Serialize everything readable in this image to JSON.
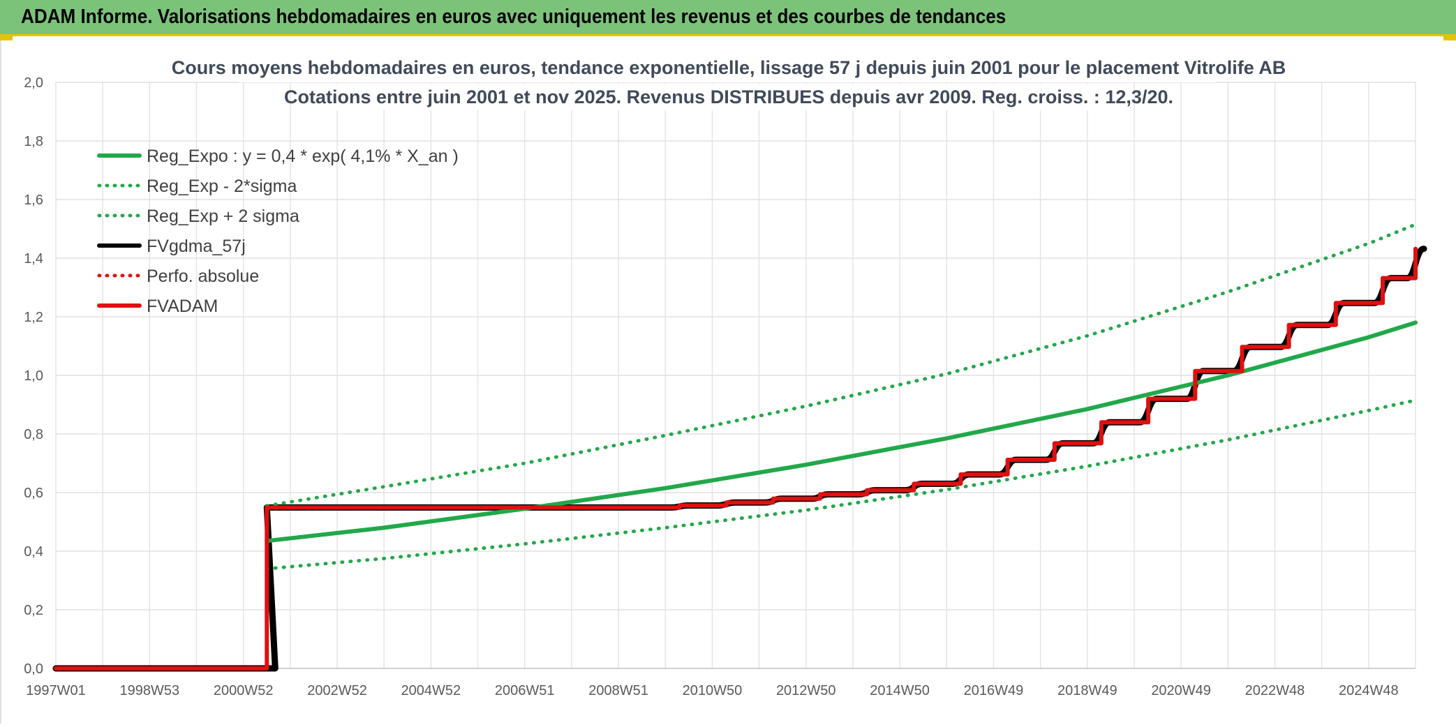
{
  "header": {
    "title": "ADAM Informe. Valorisations hebdomadaires en euros avec uniquement les revenus et des courbes de tendances"
  },
  "chart_data": {
    "type": "line",
    "title": "Cours moyens hebdomadaires en euros, tendance exponentielle, lissage 57 j depuis juin 2001 pour le placement Vitrolife AB",
    "subtitle": "Cotations entre juin 2001 et nov 2025. Revenus DISTRIBUES depuis avr 2009. Reg. croiss. : 12,3/20.",
    "xlabel": "",
    "ylabel": "",
    "xlim": [
      1997.0,
      2026.0
    ],
    "ylim": [
      0,
      2.0
    ],
    "grid": true,
    "legend_position": "top-left",
    "x_tick_labels": [
      "1997W01",
      "1998W53",
      "2000W52",
      "2002W52",
      "2004W52",
      "2006W51",
      "2008W51",
      "2010W50",
      "2012W50",
      "2014W50",
      "2016W49",
      "2018W49",
      "2020W49",
      "2022W48",
      "2024W48"
    ],
    "x_tick_values": [
      1997.0,
      1999.0,
      2001.0,
      2003.0,
      2005.0,
      2007.0,
      2009.0,
      2011.0,
      2013.0,
      2015.0,
      2017.0,
      2019.0,
      2021.0,
      2023.0,
      2025.0
    ],
    "y_tick_labels": [
      "0,0",
      "0,2",
      "0,4",
      "0,6",
      "0,8",
      "1,0",
      "1,2",
      "1,4",
      "1,6",
      "1,8",
      "2,0"
    ],
    "y_tick_values": [
      0,
      0.2,
      0.4,
      0.6,
      0.8,
      1.0,
      1.2,
      1.4,
      1.6,
      1.8,
      2.0
    ],
    "series": [
      {
        "name": "Reg_Expo : y = 0,4 * exp( 4,1% *  X_an )",
        "style": "solid",
        "color": "#22a84a",
        "x": [
          2001.5,
          2004,
          2007,
          2010,
          2013,
          2016,
          2019,
          2022,
          2025,
          2026
        ],
        "y": [
          0.435,
          0.48,
          0.545,
          0.615,
          0.695,
          0.785,
          0.885,
          1.0,
          1.13,
          1.18
        ]
      },
      {
        "name": "Reg_Exp - 2*sigma",
        "style": "dotted",
        "color": "#22a84a",
        "x": [
          2001.5,
          2004,
          2007,
          2010,
          2013,
          2016,
          2019,
          2022,
          2025,
          2026
        ],
        "y": [
          0.34,
          0.375,
          0.425,
          0.48,
          0.54,
          0.61,
          0.69,
          0.78,
          0.88,
          0.915
        ]
      },
      {
        "name": "Reg_Exp + 2 sigma",
        "style": "dotted",
        "color": "#22a84a",
        "x": [
          2001.5,
          2004,
          2007,
          2010,
          2013,
          2016,
          2019,
          2022,
          2025,
          2026
        ],
        "y": [
          0.555,
          0.62,
          0.7,
          0.795,
          0.895,
          1.005,
          1.135,
          1.285,
          1.45,
          1.515
        ]
      },
      {
        "name": "FVgdma_57j",
        "style": "solid-smooth",
        "color": "#000000",
        "x": [
          1997.0,
          2001.5,
          2001.5,
          2009.3,
          2010.3,
          2011.3,
          2012.3,
          2013.3,
          2014.3,
          2015.3,
          2016.3,
          2017.3,
          2018.3,
          2019.3,
          2020.3,
          2021.3,
          2022.3,
          2023.3,
          2024.3,
          2025.3,
          2026.0
        ],
        "y": [
          0.0,
          0.0,
          0.549,
          0.549,
          0.556,
          0.566,
          0.579,
          0.594,
          0.608,
          0.63,
          0.662,
          0.712,
          0.768,
          0.84,
          0.92,
          1.015,
          1.097,
          1.172,
          1.247,
          1.332,
          1.432
        ]
      },
      {
        "name": "Perfo. absolue",
        "style": "dotted",
        "color": "#e01010",
        "x": [],
        "y": []
      },
      {
        "name": "FVADAM",
        "style": "step",
        "color": "#e01010",
        "x": [
          1997.0,
          2001.5,
          2001.5,
          2009.3,
          2010.3,
          2011.3,
          2012.3,
          2013.3,
          2014.3,
          2015.3,
          2016.3,
          2017.3,
          2018.3,
          2019.3,
          2020.3,
          2021.3,
          2022.3,
          2023.3,
          2024.3,
          2025.3,
          2026.0
        ],
        "y": [
          0.0,
          0.0,
          0.549,
          0.549,
          0.556,
          0.566,
          0.579,
          0.594,
          0.608,
          0.63,
          0.662,
          0.712,
          0.768,
          0.84,
          0.92,
          1.015,
          1.097,
          1.172,
          1.247,
          1.332,
          1.432
        ]
      }
    ]
  }
}
